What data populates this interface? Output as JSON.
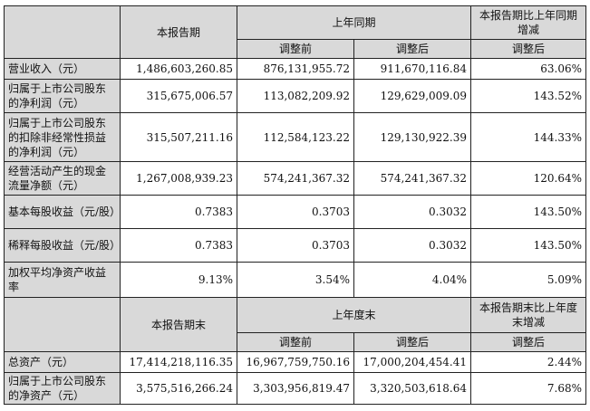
{
  "header1": {
    "current": "本报告期",
    "prior": "上年同期",
    "change": "本报告期比上年同期增减",
    "before": "调整前",
    "after": "调整后",
    "change_after": "调整后"
  },
  "rows1": [
    {
      "label": "营业收入（元）",
      "current": "1,486,603,260.85",
      "before": "876,131,955.72",
      "after": "911,670,116.84",
      "change": "63.06%"
    },
    {
      "label": "归属于上市公司股东的净利润（元）",
      "current": "315,675,006.57",
      "before": "113,082,209.92",
      "after": "129,629,009.09",
      "change": "143.52%"
    },
    {
      "label": "归属于上市公司股东的扣除非经常性损益的净利润（元）",
      "current": "315,507,211.16",
      "before": "112,584,123.22",
      "after": "129,130,922.39",
      "change": "144.33%"
    },
    {
      "label": "经营活动产生的现金流量净额（元）",
      "current": "1,267,008,939.23",
      "before": "574,241,367.32",
      "after": "574,241,367.32",
      "change": "120.64%"
    },
    {
      "label": "基本每股收益（元/股）",
      "current": "0.7383",
      "before": "0.3703",
      "after": "0.3032",
      "change": "143.50%"
    },
    {
      "label": "稀释每股收益（元/股）",
      "current": "0.7383",
      "before": "0.3703",
      "after": "0.3032",
      "change": "143.50%"
    },
    {
      "label": "加权平均净资产收益率",
      "current": "9.13%",
      "before": "3.54%",
      "after": "4.04%",
      "change": "5.09%"
    }
  ],
  "header2": {
    "current": "本报告期末",
    "prior": "上年度末",
    "change": "本报告期末比上年度末增减",
    "before": "调整前",
    "after": "调整后",
    "change_after": "调整后"
  },
  "rows2": [
    {
      "label": "总资产（元）",
      "current": "17,414,218,116.35",
      "before": "16,967,759,750.16",
      "after": "17,000,204,454.41",
      "change": "2.44%"
    },
    {
      "label": "归属于上市公司股东的净资产（元）",
      "current": "3,575,516,266.24",
      "before": "3,303,956,819.47",
      "after": "3,320,503,618.64",
      "change": "7.68%"
    }
  ]
}
